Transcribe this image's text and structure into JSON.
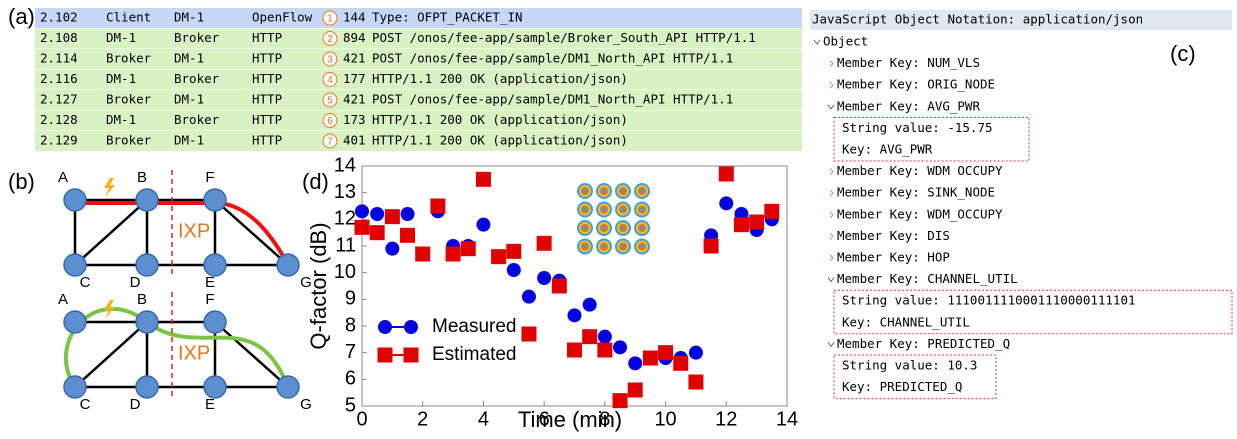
{
  "panel_labels": {
    "a": "(a)",
    "b": "(b)",
    "c": "(c)",
    "d": "(d)"
  },
  "table": {
    "rows": [
      [
        "2.102",
        "Client",
        "DM-1",
        "OpenFlow",
        "1",
        "144",
        "Type: OFPT_PACKET_IN"
      ],
      [
        "2.108",
        "DM-1",
        "Broker",
        "HTTP",
        "2",
        "894",
        "POST /onos/fee-app/sample/Broker_South_API HTTP/1.1"
      ],
      [
        "2.114",
        "Broker",
        "DM-1",
        "HTTP",
        "3",
        "421",
        "POST /onos/fee-app/sample/DM1_North_API HTTP/1.1"
      ],
      [
        "2.116",
        "DM-1",
        "Broker",
        "HTTP",
        "4",
        "177",
        "HTTP/1.1 200 OK  (application/json)"
      ],
      [
        "2.127",
        "Broker",
        "DM-1",
        "HTTP",
        "5",
        "421",
        "POST /onos/fee-app/sample/DM1_North_API HTTP/1.1"
      ],
      [
        "2.128",
        "DM-1",
        "Broker",
        "HTTP",
        "6",
        "173",
        "HTTP/1.1 200 OK  (application/json)"
      ],
      [
        "2.129",
        "Broker",
        "DM-1",
        "HTTP",
        "7",
        "401",
        "HTTP/1.1 200 OK  (application/json)"
      ]
    ]
  },
  "diagrams": [
    {
      "nodes": [
        "A",
        "B",
        "F",
        "C",
        "D",
        "E",
        "G"
      ],
      "region": "IXP"
    },
    {
      "nodes": [
        "A",
        "B",
        "F",
        "C",
        "D",
        "E",
        "G"
      ],
      "region": "IXP"
    }
  ],
  "json_tree": {
    "header": "JavaScript Object Notation: application/json",
    "lines": [
      "Object",
      "Member Key: NUM_VLS",
      "Member Key: ORIG_NODE",
      "Member Key: AVG_PWR",
      "String value: -15.75",
      "Key: AVG_PWR",
      "Member Key: WDM OCCUPY",
      "Member Key: SINK_NODE",
      "Member Key: WDM_OCCUPY",
      "Member Key: DIS",
      "Member Key: HOP",
      "Member Key: CHANNEL_UTIL",
      "String value: 1110011110001110000111101",
      "Key: CHANNEL_UTIL",
      "Member Key: PREDICTED_Q",
      "String value: 10.3",
      "Key: PREDICTED_Q"
    ]
  },
  "chart_data": {
    "type": "scatter",
    "x_label": "Time (min)",
    "y_label": "Q-factor (dB)",
    "xlim": [
      0,
      14
    ],
    "xticks": [
      0,
      2,
      4,
      6,
      8,
      10,
      12,
      14
    ],
    "ylim": [
      5,
      14
    ],
    "yticks": [
      5,
      6,
      7,
      8,
      9,
      10,
      11,
      12,
      13,
      14
    ],
    "legend": "lower left",
    "series": [
      {
        "name": "Measured",
        "color": "#0000e0",
        "marker": "circle",
        "x": [
          0,
          0.5,
          1,
          1.5,
          2.5,
          3,
          3.5,
          4,
          4.5,
          5,
          5.5,
          6,
          6.5,
          7,
          7.5,
          8,
          8.5,
          9,
          9.5,
          10,
          10.5,
          11,
          11.5,
          12,
          12.5,
          13,
          13.5
        ],
        "values": [
          12.3,
          12.2,
          10.9,
          12.2,
          12.3,
          11.0,
          11.0,
          11.8,
          10.6,
          10.1,
          9.1,
          9.8,
          9.7,
          8.4,
          8.8,
          7.6,
          7.2,
          6.6,
          6.8,
          6.8,
          6.8,
          7.0,
          11.4,
          12.6,
          12.2,
          11.6,
          12.0
        ]
      },
      {
        "name": "Estimated",
        "color": "#e00000",
        "marker": "square",
        "x": [
          0,
          0.5,
          1,
          1.5,
          2,
          2.5,
          3,
          3.5,
          4,
          4.5,
          5,
          5.5,
          6,
          6.5,
          7,
          7.5,
          8,
          8.5,
          9,
          9.5,
          10,
          10.5,
          11,
          11.5,
          12,
          12.5,
          13,
          13.5
        ],
        "values": [
          11.7,
          11.5,
          12.1,
          11.4,
          10.7,
          12.5,
          10.7,
          10.9,
          13.5,
          10.6,
          10.8,
          7.7,
          11.1,
          9.5,
          7.1,
          7.6,
          7.1,
          5.2,
          5.6,
          6.8,
          7.0,
          6.6,
          5.9,
          11.0,
          13.7,
          11.8,
          11.9,
          12.3
        ]
      }
    ]
  }
}
